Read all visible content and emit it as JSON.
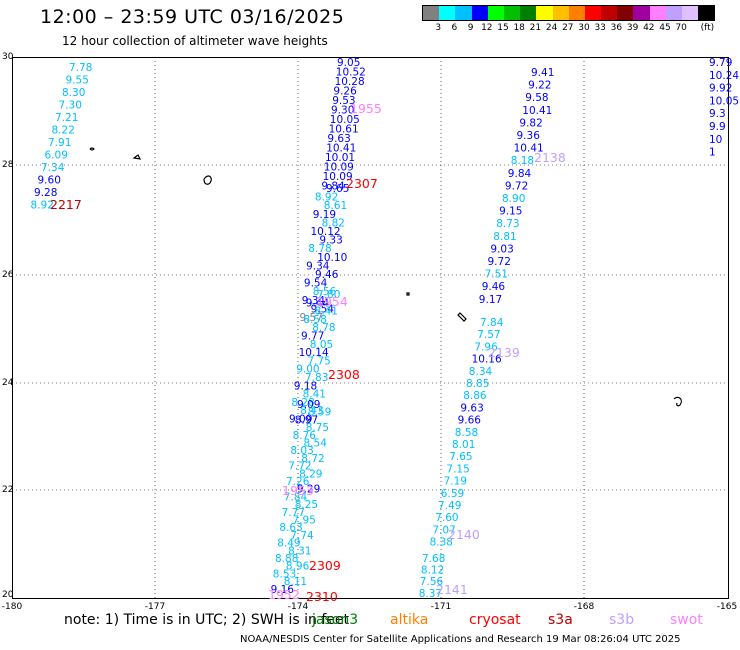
{
  "title": "12:00 – 23:59 UTC 03/16/2025",
  "subtitle": "12 hour collection of altimeter wave heights",
  "legend": {
    "colors": [
      "#808080",
      "#00ffff",
      "#00c0ff",
      "#0000ff",
      "#00ff00",
      "#00c000",
      "#008000",
      "#ffff00",
      "#ffc000",
      "#ff8000",
      "#ff0000",
      "#c00000",
      "#800000",
      "#a000a0",
      "#ff80ff",
      "#c0a0ff",
      "#e0c0ff",
      "#000000"
    ],
    "labels": [
      "3",
      "6",
      "9",
      "12",
      "15",
      "18",
      "21",
      "24",
      "27",
      "30",
      "33",
      "36",
      "39",
      "42",
      "45",
      "70",
      "(ft)"
    ]
  },
  "axes": {
    "y_labels": [
      "30",
      "28",
      "26",
      "24",
      "22",
      "20"
    ],
    "x_labels": [
      "-180",
      "-177",
      "-174",
      "-171",
      "-168",
      "-165"
    ]
  },
  "tracks": [
    {
      "name": "2217",
      "color": "#c00000",
      "points": [
        [
          "7.78",
          "#00c0ff"
        ],
        [
          "9.55",
          "#00c0ff"
        ],
        [
          "8.30",
          "#00c0ff"
        ],
        [
          "7.30",
          "#00c0ff"
        ],
        [
          "7.21",
          "#00c0ff"
        ],
        [
          "8.22",
          "#00c0ff"
        ],
        [
          "7.91",
          "#00c0ff"
        ],
        [
          "6.09",
          "#00c0ff"
        ],
        [
          "7.34",
          "#00c0ff"
        ],
        [
          "9.60",
          "#0000ff"
        ],
        [
          "9.28",
          "#0000ff"
        ],
        [
          "8.92",
          "#00c0ff"
        ]
      ]
    },
    {
      "name": "1955",
      "color": "#ff80ff",
      "points": [
        [
          "9.05",
          "#0000ff"
        ],
        [
          "10.52",
          "#0000ff"
        ],
        [
          "10.28",
          "#0000ff"
        ],
        [
          "9.26",
          "#0000ff"
        ],
        [
          "9.53",
          "#0000ff"
        ],
        [
          "9.30",
          "#0000ff"
        ],
        [
          "10.05",
          "#0000ff"
        ],
        [
          "10.61",
          "#0000ff"
        ],
        [
          "9.63",
          "#0000ff"
        ],
        [
          "10.41",
          "#0000ff"
        ],
        [
          "10.01",
          "#0000ff"
        ],
        [
          "10.09",
          "#0000ff"
        ],
        [
          "10.09",
          "#0000ff"
        ],
        [
          "9.84",
          "#0000ff"
        ]
      ]
    },
    {
      "name": "2307",
      "color": "#ff0000",
      "points": [
        [
          "9.65",
          "#0000ff"
        ],
        [
          "8.92",
          "#00c0ff"
        ],
        [
          "8.61",
          "#00c0ff"
        ],
        [
          "9.19",
          "#0000ff"
        ],
        [
          "8.82",
          "#00c0ff"
        ],
        [
          "10.12",
          "#0000ff"
        ],
        [
          "9.33",
          "#0000ff"
        ],
        [
          "8.78",
          "#00c0ff"
        ],
        [
          "10.10",
          "#0000ff"
        ],
        [
          "9.34",
          "#0000ff"
        ],
        [
          "9.46",
          "#0000ff"
        ],
        [
          "9.54",
          "#0000ff"
        ],
        [
          "8.56",
          "#00c0ff"
        ],
        [
          "9.34",
          "#0000ff"
        ],
        [
          "9.54",
          "#0000ff"
        ],
        [
          "9.57",
          "#808080"
        ]
      ]
    },
    {
      "name": "2138",
      "color": "#c0a0ff",
      "points": [
        [
          "9.41",
          "#0000ff"
        ],
        [
          "9.22",
          "#0000ff"
        ],
        [
          "9.58",
          "#0000ff"
        ],
        [
          "10.41",
          "#0000ff"
        ],
        [
          "9.82",
          "#0000ff"
        ],
        [
          "9.36",
          "#0000ff"
        ],
        [
          "10.41",
          "#0000ff"
        ],
        [
          "8.18",
          "#00c0ff"
        ],
        [
          "9.84",
          "#0000ff"
        ],
        [
          "9.72",
          "#0000ff"
        ],
        [
          "8.90",
          "#00c0ff"
        ],
        [
          "9.15",
          "#0000ff"
        ],
        [
          "8.73",
          "#00c0ff"
        ],
        [
          "8.81",
          "#00c0ff"
        ],
        [
          "9.03",
          "#0000ff"
        ],
        [
          "9.72",
          "#0000ff"
        ],
        [
          "7.51",
          "#00c0ff"
        ],
        [
          "9.46",
          "#0000ff"
        ],
        [
          "9.17",
          "#0000ff"
        ]
      ]
    },
    {
      "name": "1954",
      "color": "#ff80ff",
      "points": [
        [
          "7.80",
          "#00c0ff"
        ],
        [
          "9.44",
          "#0000ff"
        ],
        [
          "8.41",
          "#00c0ff"
        ],
        [
          "8.58",
          "#00c0ff"
        ],
        [
          "8.78",
          "#00c0ff"
        ],
        [
          "9.77",
          "#0000ff"
        ],
        [
          "8.05",
          "#00c0ff"
        ],
        [
          "10.14",
          "#0000ff"
        ],
        [
          "7.75",
          "#00c0ff"
        ],
        [
          "9.00",
          "#00c0ff"
        ],
        [
          "7.83",
          "#00c0ff"
        ],
        [
          "9.18",
          "#0000ff"
        ],
        [
          "8.41",
          "#00c0ff"
        ],
        [
          "8.28",
          "#00c0ff"
        ],
        [
          "8.43",
          "#00c0ff"
        ],
        [
          "9.09",
          "#0000ff"
        ]
      ]
    },
    {
      "name": "2308",
      "color": "#ff0000",
      "points": []
    },
    {
      "name": "2139",
      "color": "#c0a0ff",
      "points": [
        [
          "7.84",
          "#00c0ff"
        ],
        [
          "7.57",
          "#00c0ff"
        ],
        [
          "7.96",
          "#00c0ff"
        ],
        [
          "10.16",
          "#0000ff"
        ],
        [
          "8.34",
          "#00c0ff"
        ],
        [
          "8.85",
          "#00c0ff"
        ],
        [
          "8.86",
          "#00c0ff"
        ],
        [
          "9.63",
          "#0000ff"
        ],
        [
          "9.66",
          "#0000ff"
        ],
        [
          "8.58",
          "#00c0ff"
        ],
        [
          "8.01",
          "#00c0ff"
        ],
        [
          "7.65",
          "#00c0ff"
        ],
        [
          "7.15",
          "#00c0ff"
        ],
        [
          "7.19",
          "#00c0ff"
        ],
        [
          "6.59",
          "#00c0ff"
        ],
        [
          "7.49",
          "#00c0ff"
        ],
        [
          "7.60",
          "#00c0ff"
        ],
        [
          "7.07",
          "#00c0ff"
        ],
        [
          "8.38",
          "#00c0ff"
        ]
      ]
    },
    {
      "name": "1953",
      "color": "#ff80ff",
      "points": [
        [
          "9.09",
          "#0000ff"
        ],
        [
          "8.59",
          "#00c0ff"
        ],
        [
          "8.97",
          "#0000ff"
        ],
        [
          "8.75",
          "#00c0ff"
        ],
        [
          "8.76",
          "#00c0ff"
        ],
        [
          "8.54",
          "#00c0ff"
        ],
        [
          "8.03",
          "#00c0ff"
        ],
        [
          "8.72",
          "#00c0ff"
        ],
        [
          "7.72",
          "#00c0ff"
        ],
        [
          "8.29",
          "#00c0ff"
        ],
        [
          "7.26",
          "#00c0ff"
        ],
        [
          "9.29",
          "#0000ff"
        ],
        [
          "7.84",
          "#00c0ff"
        ],
        [
          "8.25",
          "#00c0ff"
        ],
        [
          "7.77",
          "#00c0ff"
        ],
        [
          "7.95",
          "#00c0ff"
        ],
        [
          "8.63",
          "#00c0ff"
        ],
        [
          "7.74",
          "#00c0ff"
        ],
        [
          "8.49",
          "#00c0ff"
        ],
        [
          "8.31",
          "#00c0ff"
        ],
        [
          "8.88",
          "#00c0ff"
        ],
        [
          "8.96",
          "#00c0ff"
        ],
        [
          "8.53",
          "#00c0ff"
        ],
        [
          "8.11",
          "#00c0ff"
        ],
        [
          "9.16",
          "#0000ff"
        ],
        [
          "8.35",
          "#00c0ff"
        ],
        [
          "8.56",
          "#00c0ff"
        ],
        [
          "8.06",
          "#00c0ff"
        ],
        [
          "8.54",
          "#00c0ff"
        ],
        [
          "8.29",
          "#00c0ff"
        ],
        [
          "8.11",
          "#00c0ff"
        ],
        [
          "8.94",
          "#00c0ff"
        ],
        [
          "8.83",
          "#00c0ff"
        ]
      ]
    },
    {
      "name": "2309",
      "color": "#ff0000",
      "points": []
    },
    {
      "name": "2140",
      "color": "#c0a0ff",
      "points": [
        [
          "7.68",
          "#00c0ff"
        ],
        [
          "8.12",
          "#00c0ff"
        ],
        [
          "7.56",
          "#00c0ff"
        ],
        [
          "8.37",
          "#00c0ff"
        ]
      ]
    },
    {
      "name": "2141",
      "color": "#c0a0ff",
      "points": []
    },
    {
      "name": "2310",
      "color": "#ff0000",
      "points": []
    },
    {
      "name": "1952",
      "color": "#ff80ff",
      "points": []
    }
  ],
  "right_edge": [
    [
      "9.79",
      "#0000ff"
    ],
    [
      "10.24",
      "#0000ff"
    ],
    [
      "9.92",
      "#0000ff"
    ],
    [
      "10.05",
      "#0000ff"
    ],
    [
      "9.3",
      "#0000ff"
    ],
    [
      "9.9",
      "#0000ff"
    ],
    [
      "10",
      "#0000ff"
    ],
    [
      "1",
      "#0000ff"
    ]
  ],
  "note": "note: 1) Time is in UTC; 2) SWH is in feet",
  "satellites": [
    {
      "name": "jason3",
      "color": "#008000"
    },
    {
      "name": "altika",
      "color": "#ff8000"
    },
    {
      "name": "cryosat",
      "color": "#ff0000"
    },
    {
      "name": "s3a",
      "color": "#c00000"
    },
    {
      "name": "s3b",
      "color": "#c0a0ff"
    },
    {
      "name": "swot",
      "color": "#ff80ff"
    }
  ],
  "credit": "NOAA/NESDIS Center for Satellite Applications and Research  19 Mar 08:26:04 UTC 2025"
}
